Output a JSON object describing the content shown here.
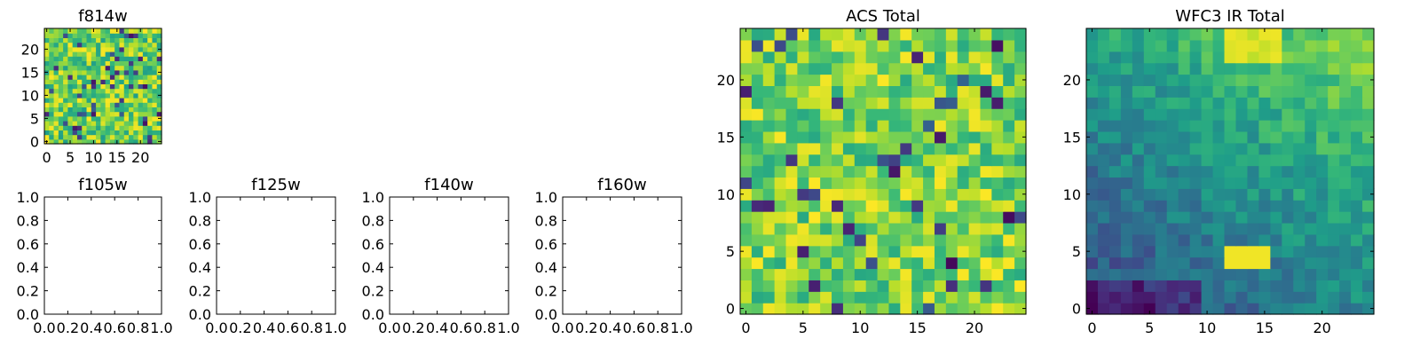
{
  "chart_data": [
    {
      "type": "heatmap",
      "title": "f814w",
      "grid_size": 25,
      "xlim": [
        -0.5,
        24.5
      ],
      "ylim": [
        -0.5,
        24.5
      ],
      "xticks": [
        0,
        5,
        10,
        15,
        20
      ],
      "yticks": [
        0,
        5,
        10,
        15,
        20
      ],
      "colormap": "viridis",
      "values": "25x25 pixel array of per-pixel values (unlabeled noise-like image)"
    },
    {
      "type": "heatmap",
      "title": "f105w",
      "xlim": [
        0.0,
        1.0
      ],
      "ylim": [
        0.0,
        1.0
      ],
      "xticks": [
        "0.0",
        "0.2",
        "0.4",
        "0.6",
        "0.8",
        "1.0"
      ],
      "yticks": [
        "0.0",
        "0.2",
        "0.4",
        "0.6",
        "0.8",
        "1.0"
      ],
      "values": []
    },
    {
      "type": "heatmap",
      "title": "f125w",
      "xlim": [
        0.0,
        1.0
      ],
      "ylim": [
        0.0,
        1.0
      ],
      "xticks": [
        "0.0",
        "0.2",
        "0.4",
        "0.6",
        "0.8",
        "1.0"
      ],
      "yticks": [
        "0.0",
        "0.2",
        "0.4",
        "0.6",
        "0.8",
        "1.0"
      ],
      "values": []
    },
    {
      "type": "heatmap",
      "title": "f140w",
      "xlim": [
        0.0,
        1.0
      ],
      "ylim": [
        0.0,
        1.0
      ],
      "xticks": [
        "0.0",
        "0.2",
        "0.4",
        "0.6",
        "0.8",
        "1.0"
      ],
      "yticks": [
        "0.0",
        "0.2",
        "0.4",
        "0.6",
        "0.8",
        "1.0"
      ],
      "values": []
    },
    {
      "type": "heatmap",
      "title": "f160w",
      "xlim": [
        0.0,
        1.0
      ],
      "ylim": [
        0.0,
        1.0
      ],
      "xticks": [
        "0.0",
        "0.2",
        "0.4",
        "0.6",
        "0.8",
        "1.0"
      ],
      "yticks": [
        "0.0",
        "0.2",
        "0.4",
        "0.6",
        "0.8",
        "1.0"
      ],
      "values": []
    },
    {
      "type": "heatmap",
      "title": "ACS Total",
      "grid_size": 25,
      "xlim": [
        -0.5,
        24.5
      ],
      "ylim": [
        -0.5,
        24.5
      ],
      "xticks": [
        0,
        5,
        10,
        15,
        20
      ],
      "yticks": [
        0,
        5,
        10,
        15,
        20
      ],
      "colormap": "viridis",
      "values": "25x25 pixel array, mostly high (green-yellow) values with scattered dark pixels"
    },
    {
      "type": "heatmap",
      "title": "WFC3 IR Total",
      "grid_size": 25,
      "xlim": [
        -0.5,
        24.5
      ],
      "ylim": [
        -0.5,
        24.5
      ],
      "xticks": [
        0,
        5,
        10,
        15,
        20
      ],
      "yticks": [
        0,
        5,
        10,
        15,
        20
      ],
      "colormap": "viridis",
      "values": "25x25 pixel array, darker toward the bottom-left, brighter toward top and right, bright patch near x=12-15, y=4-5"
    }
  ],
  "colors": {
    "viridis": [
      "#440154",
      "#3b528b",
      "#21918c",
      "#5ec962",
      "#fde725"
    ],
    "frame": "#000000",
    "background": "#ffffff"
  }
}
